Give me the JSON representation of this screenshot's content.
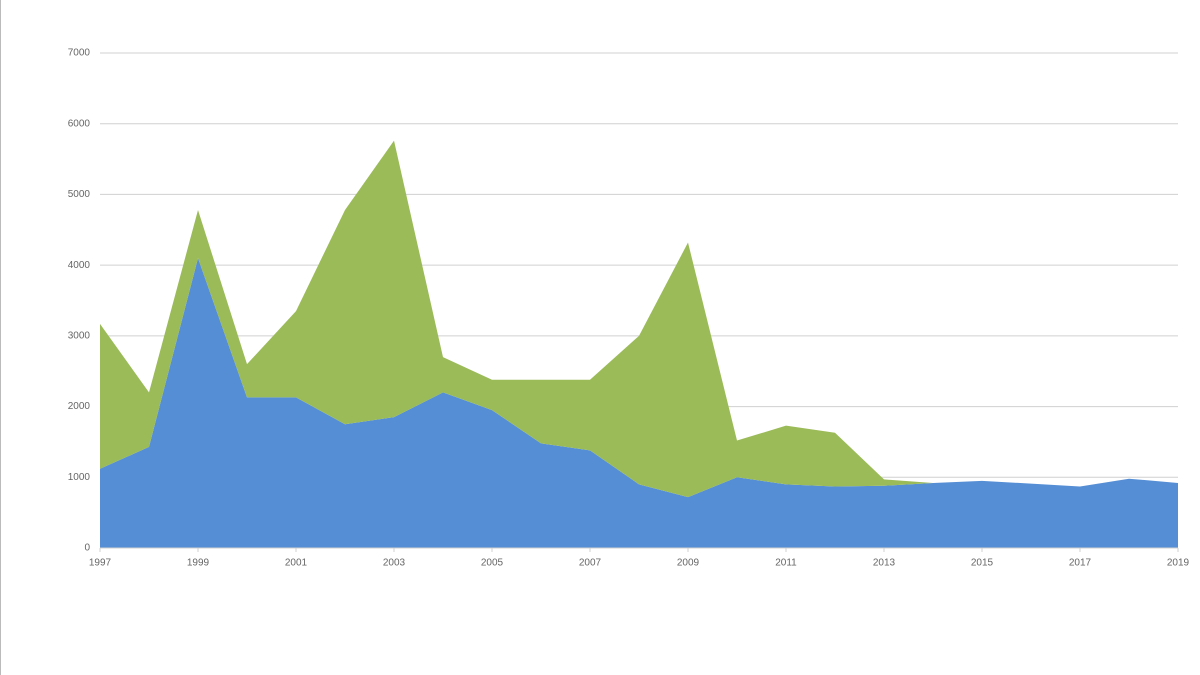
{
  "chart_data": {
    "type": "stacked-area",
    "x": [
      1997,
      1998,
      1999,
      2000,
      2001,
      2002,
      2003,
      2004,
      2005,
      2006,
      2007,
      2008,
      2009,
      2010,
      2011,
      2012,
      2013,
      2014,
      2015,
      2016,
      2017,
      2018,
      2019
    ],
    "series": [
      {
        "color": "#558ed5",
        "values": [
          1120,
          1430,
          4100,
          2130,
          2130,
          1750,
          1850,
          2200,
          1950,
          1480,
          1380,
          900,
          720,
          1000,
          900,
          870,
          880,
          920,
          950,
          910,
          870,
          980,
          920
        ]
      },
      {
        "color": "#9bbb59",
        "values": [
          2050,
          770,
          680,
          470,
          1220,
          3030,
          3910,
          500,
          430,
          900,
          1000,
          2100,
          3600,
          520,
          830,
          760,
          90,
          0,
          0,
          0,
          0,
          0,
          0
        ]
      }
    ],
    "xlim": [
      1997,
      2019
    ],
    "xticks": [
      1997,
      1999,
      2001,
      2003,
      2005,
      2007,
      2009,
      2011,
      2013,
      2015,
      2017,
      2019
    ],
    "ylim": [
      0,
      7000
    ],
    "yticks": [
      0,
      1000,
      2000,
      3000,
      4000,
      5000,
      6000,
      7000
    ],
    "grid": true
  }
}
